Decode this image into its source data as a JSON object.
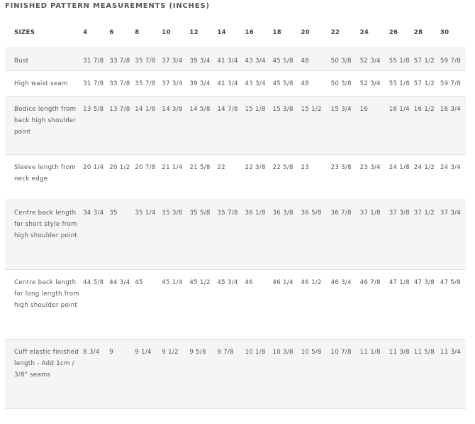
{
  "title": "FINISHED PATTERN MEASUREMENTS (INCHES)",
  "header": {
    "label": "SIZES",
    "sizes": [
      "4",
      "6",
      "8",
      "10",
      "12",
      "14",
      "16",
      "18",
      "20",
      "22",
      "24",
      "26",
      "28",
      "30"
    ]
  },
  "rows": [
    {
      "label": "Bust",
      "values": [
        "31 7/8",
        "33 7/8",
        "35 7/8",
        "37 3/4",
        "39 3/4",
        "41 3/4",
        "43 3/4",
        "45 5/8",
        "48",
        "50 3/8",
        "52 3/4",
        "55 1/8",
        "57 1/2",
        "59 7/8"
      ]
    },
    {
      "label": "High waist seam",
      "values": [
        "31 7/8",
        "33 7/8",
        "35 7/8",
        "37 3/4",
        "39 3/4",
        "41 3/4",
        "43 3/4",
        "45 5/8",
        "48",
        "50 3/8",
        "52 3/4",
        "55 1/8",
        "57 1/2",
        "59 7/8"
      ]
    },
    {
      "label": "Bodice length from back high shoulder point",
      "values": [
        "13 5/8",
        "13 7/8",
        "14 1/8",
        "14 3/8",
        "14 5/8",
        "14 7/8",
        "15 1/8",
        "15 3/8",
        "15 1/2",
        "15 3/4",
        "16",
        "16 1/4",
        "16 1/2",
        "16 3/4"
      ]
    },
    {
      "label": "Sleeve length from neck edge",
      "values": [
        "20 1/4",
        "20 1/2",
        "20 7/8",
        "21 1/4",
        "21 5/8",
        "22",
        "22 3/8",
        "22 5/8",
        "23",
        "23 3/8",
        "23 3/4",
        "24 1/8",
        "24 1/2",
        "24 3/4"
      ]
    },
    {
      "label": "Centre back length for short style from high shoulder point",
      "values": [
        "34 3/4",
        "35",
        "35 1/4",
        "35 3/8",
        "35 5/8",
        "35 7/8",
        "36 1/8",
        "36 3/8",
        "36 5/8",
        "36 7/8",
        "37 1/8",
        "37 3/8",
        "37 1/2",
        "37 3/4"
      ]
    },
    {
      "label": "Centre back length for long length from high shoulder point",
      "values": [
        "44 5/8",
        "44 3/4",
        "45",
        "45 1/4",
        "45 1/2",
        "45 3/4",
        "46",
        "46 1/4",
        "46 1/2",
        "46 3/4",
        "46 7/8",
        "47 1/8",
        "47 3/8",
        "47 5/8"
      ]
    },
    {
      "label": "Cuff elastic finished length - Add 1cm / 3/8\" seams",
      "values": [
        "8 3/4",
        "9",
        "9 1/4",
        "9 1/2",
        "9 5/8",
        "9 7/8",
        "10 1/8",
        "10 3/8",
        "10 5/8",
        "10 7/8",
        "11 1/8",
        "11 3/8",
        "11 5/8",
        "11 3/4"
      ]
    }
  ]
}
